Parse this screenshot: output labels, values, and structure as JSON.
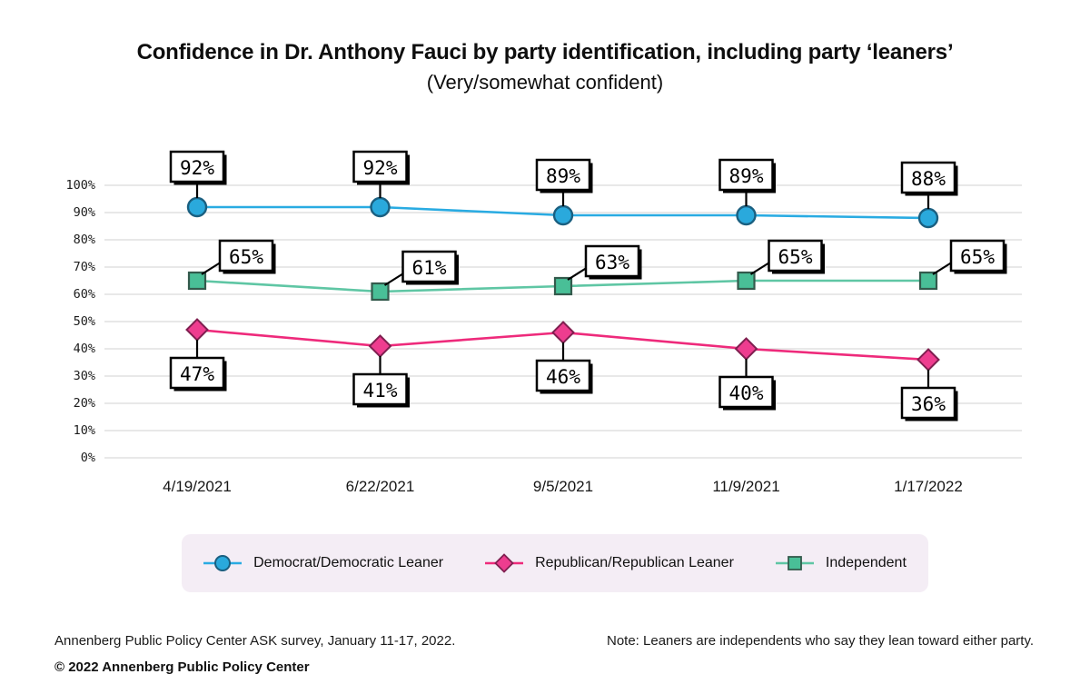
{
  "header": {
    "title": "Confidence in Dr. Anthony Fauci by party identification, including party ‘leaners’",
    "subtitle": "(Very/somewhat confident)"
  },
  "chart_data": {
    "type": "line",
    "title": "Confidence in Dr. Anthony Fauci by party identification, including party ‘leaners’",
    "subtitle": "(Very/somewhat confident)",
    "x": [
      "4/19/2021",
      "6/22/2021",
      "9/5/2021",
      "11/9/2021",
      "1/17/2022"
    ],
    "series": [
      {
        "name": "Democrat/Democratic Leaner",
        "values": [
          92,
          92,
          89,
          89,
          88
        ],
        "line_color": "#29abe2",
        "marker": "circle",
        "marker_fill": "#2aa9dc",
        "marker_stroke": "#1a5f80",
        "label_position": "above"
      },
      {
        "name": "Republican/Republican Leaner",
        "values": [
          47,
          41,
          46,
          40,
          36
        ],
        "line_color": "#ee2a7b",
        "marker": "diamond",
        "marker_fill": "#ee3d8f",
        "marker_stroke": "#801f50",
        "label_position": "below"
      },
      {
        "name": "Independent",
        "values": [
          65,
          61,
          63,
          65,
          65
        ],
        "line_color": "#5fc6a4",
        "marker": "square",
        "marker_fill": "#49bf97",
        "marker_stroke": "#335a4c",
        "label_position": "upper_right"
      }
    ],
    "ylim": [
      0,
      100
    ],
    "ytick_step": 10,
    "ytick_suffix": "%",
    "data_label_suffix": "%",
    "grid": true,
    "gridline_color": "#d9d9d9",
    "legend_position": "bottom",
    "legend_background": "#f4edf5"
  },
  "footer": {
    "source": "Annenberg Public Policy Center ASK survey, January 11-17, 2022.",
    "note": "Note: Leaners are independents who say they lean toward either party.",
    "copyright": "© 2022 Annenberg Public Policy Center"
  }
}
